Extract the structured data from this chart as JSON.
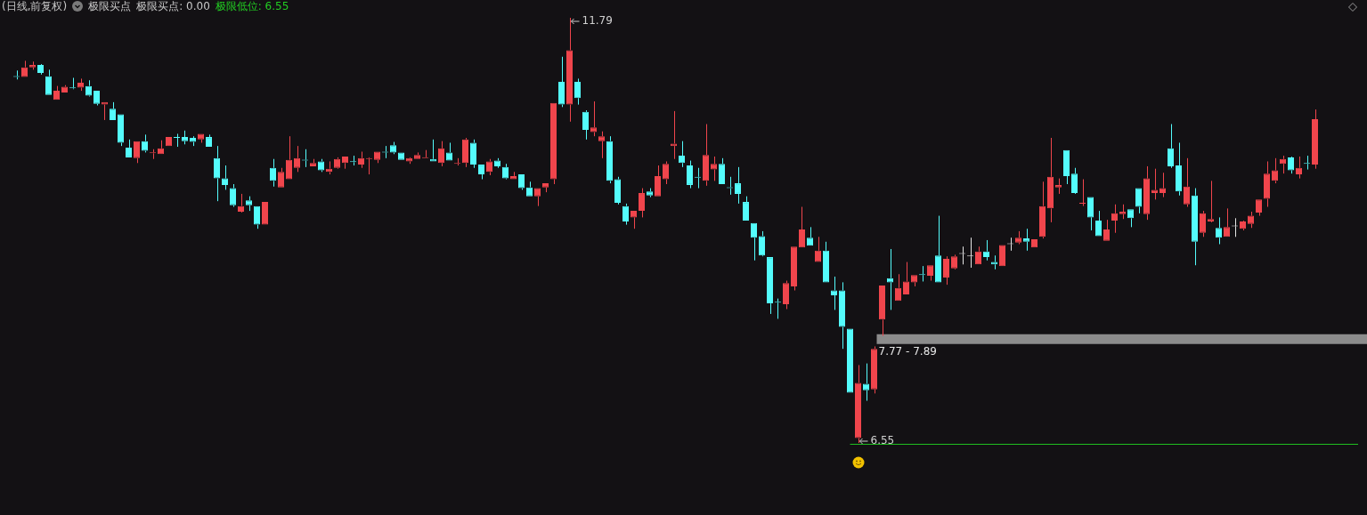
{
  "chart_data": {
    "type": "candlestick",
    "title": "(日线,前复权)",
    "subtitle": "极限买点",
    "annotations": [
      "极限买点: 0.00",
      "极限低位: 6.55",
      {
        "text": "11.79"
      },
      {
        "text": "6.55",
        "y": 6.55
      }
    ],
    "ref_lines": [
      {
        "axis": "y",
        "value": 6.55,
        "color": "#1fbf1f"
      }
    ],
    "bands": [
      {
        "axis": "y",
        "from": 7.77,
        "to": 7.89,
        "label": "7.77 - 7.89",
        "color": "#8c8c8c"
      }
    ],
    "categories": [
      null,
      null,
      null,
      null,
      null,
      null,
      null,
      null,
      null,
      null,
      null,
      null,
      null,
      null,
      null,
      null,
      null,
      null,
      null,
      null,
      null,
      null,
      null,
      null,
      null,
      null,
      null,
      null,
      null,
      null,
      null,
      null,
      null,
      null,
      null,
      null,
      null,
      null,
      null,
      null,
      null,
      null,
      null,
      null,
      null,
      null,
      null,
      null,
      null,
      null,
      null,
      null,
      null,
      null,
      null,
      null,
      null,
      null,
      null,
      null,
      null,
      null,
      null,
      null,
      null,
      null,
      null,
      null,
      null,
      null,
      null,
      null,
      null,
      null,
      null,
      null,
      null,
      null,
      null,
      null,
      null,
      null,
      null,
      null,
      null,
      null,
      null,
      null,
      null,
      null,
      null,
      null,
      null,
      null,
      null,
      null,
      null,
      null,
      null,
      null,
      null,
      null,
      null,
      null,
      null,
      null,
      null,
      null,
      null,
      null,
      null,
      null,
      null,
      null,
      null,
      null,
      null,
      null,
      null,
      null,
      null,
      null,
      null,
      null,
      null,
      null,
      null,
      null,
      null,
      null,
      null,
      null,
      null,
      null,
      null,
      null,
      null,
      null,
      null,
      null,
      null,
      null,
      null,
      null,
      null,
      null,
      null,
      null,
      null,
      null,
      null,
      null,
      null,
      null,
      null,
      null,
      null,
      null,
      null,
      null,
      null,
      null,
      null
    ],
    "ohlc": [
      [
        11.07,
        11.14,
        11.03,
        11.06
      ],
      [
        11.06,
        11.26,
        11.06,
        11.18
      ],
      [
        11.18,
        11.25,
        11.15,
        11.21
      ],
      [
        11.21,
        11.22,
        11.09,
        11.11
      ],
      [
        11.07,
        11.15,
        10.84,
        10.84
      ],
      [
        10.78,
        10.95,
        10.78,
        10.89
      ],
      [
        10.87,
        10.96,
        10.87,
        10.94
      ],
      [
        10.93,
        11.05,
        10.91,
        10.92
      ],
      [
        10.93,
        11.04,
        10.89,
        10.99
      ],
      [
        10.95,
        11.02,
        10.82,
        10.83
      ],
      [
        10.89,
        10.89,
        10.71,
        10.73
      ],
      [
        10.72,
        10.75,
        10.53,
        10.75
      ],
      [
        10.67,
        10.75,
        10.53,
        10.53
      ],
      [
        10.6,
        10.6,
        10.21,
        10.25
      ],
      [
        10.19,
        10.29,
        10.07,
        10.07
      ],
      [
        10.06,
        10.27,
        10.0,
        10.27
      ],
      [
        10.27,
        10.35,
        10.13,
        10.15
      ],
      [
        10.12,
        10.17,
        10.05,
        10.13
      ],
      [
        10.11,
        10.28,
        10.11,
        10.18
      ],
      [
        10.21,
        10.32,
        10.21,
        10.32
      ],
      [
        10.32,
        10.36,
        10.2,
        10.31
      ],
      [
        10.32,
        10.4,
        10.23,
        10.27
      ],
      [
        10.31,
        10.33,
        10.21,
        10.26
      ],
      [
        10.29,
        10.36,
        10.25,
        10.36
      ],
      [
        10.32,
        10.35,
        10.2,
        10.2
      ],
      [
        10.06,
        10.21,
        9.53,
        9.81
      ],
      [
        9.81,
        9.97,
        9.67,
        9.73
      ],
      [
        9.69,
        9.74,
        9.46,
        9.48
      ],
      [
        9.4,
        9.62,
        9.39,
        9.47
      ],
      [
        9.54,
        9.59,
        9.41,
        9.48
      ],
      [
        9.47,
        9.47,
        9.19,
        9.24
      ],
      [
        9.24,
        9.52,
        9.24,
        9.52
      ],
      [
        9.94,
        10.05,
        9.71,
        9.78
      ],
      [
        9.7,
        9.94,
        9.7,
        9.89
      ],
      [
        9.8,
        10.33,
        9.8,
        10.04
      ],
      [
        9.94,
        10.21,
        9.89,
        10.06
      ],
      [
        10.04,
        10.17,
        9.95,
        10.03
      ],
      [
        9.96,
        10.05,
        9.96,
        10.0
      ],
      [
        10.02,
        10.05,
        9.89,
        9.91
      ],
      [
        9.89,
        10.02,
        9.86,
        9.93
      ],
      [
        9.94,
        10.07,
        9.93,
        10.05
      ],
      [
        10.0,
        10.08,
        9.93,
        10.08
      ],
      [
        10.02,
        10.09,
        9.97,
        10.01
      ],
      [
        9.98,
        10.14,
        9.94,
        10.06
      ],
      [
        10.05,
        10.07,
        9.86,
        10.06
      ],
      [
        10.04,
        10.14,
        10.0,
        10.14
      ],
      [
        10.14,
        10.21,
        10.06,
        10.13
      ],
      [
        10.22,
        10.26,
        10.11,
        10.13
      ],
      [
        10.13,
        10.13,
        10.04,
        10.04
      ],
      [
        10.02,
        10.07,
        9.99,
        10.06
      ],
      [
        10.05,
        10.13,
        10.05,
        10.1
      ],
      [
        10.06,
        10.16,
        10.06,
        10.07
      ],
      [
        10.05,
        10.29,
        10.02,
        10.02
      ],
      [
        10.0,
        10.27,
        9.96,
        10.18
      ],
      [
        10.13,
        10.25,
        10.03,
        10.03
      ],
      [
        9.99,
        10.06,
        9.97,
        10.0
      ],
      [
        10.0,
        10.31,
        9.95,
        10.29
      ],
      [
        10.25,
        10.29,
        9.94,
        9.98
      ],
      [
        9.98,
        9.98,
        9.8,
        9.86
      ],
      [
        9.89,
        10.05,
        9.85,
        10.02
      ],
      [
        10.03,
        10.06,
        9.94,
        9.96
      ],
      [
        9.95,
        9.99,
        9.8,
        9.81
      ],
      [
        9.8,
        9.89,
        9.8,
        9.84
      ],
      [
        9.86,
        9.86,
        9.67,
        9.69
      ],
      [
        9.7,
        9.77,
        9.59,
        9.59
      ],
      [
        9.59,
        9.69,
        9.47,
        9.69
      ],
      [
        9.7,
        9.75,
        9.64,
        9.75
      ],
      [
        9.8,
        10.74,
        9.74,
        10.74
      ],
      [
        11.0,
        11.31,
        10.69,
        10.72
      ],
      [
        10.72,
        11.79,
        10.51,
        11.39
      ],
      [
        11.0,
        11.04,
        10.72,
        10.8
      ],
      [
        10.63,
        10.65,
        10.29,
        10.41
      ],
      [
        10.38,
        10.76,
        10.33,
        10.44
      ],
      [
        10.27,
        10.39,
        10.06,
        10.33
      ],
      [
        10.27,
        10.33,
        9.75,
        9.78
      ],
      [
        9.8,
        9.83,
        9.49,
        9.51
      ],
      [
        9.47,
        9.5,
        9.24,
        9.28
      ],
      [
        9.33,
        9.41,
        9.19,
        9.41
      ],
      [
        9.41,
        9.69,
        9.33,
        9.63
      ],
      [
        9.65,
        9.69,
        9.58,
        9.6
      ],
      [
        9.59,
        9.97,
        9.59,
        9.84
      ],
      [
        9.8,
        10.02,
        9.74,
        9.99
      ],
      [
        10.21,
        10.64,
        10.05,
        10.24
      ],
      [
        10.09,
        10.27,
        9.95,
        10.0
      ],
      [
        9.97,
        10.03,
        9.69,
        9.73
      ],
      [
        9.83,
        9.94,
        9.69,
        9.82
      ],
      [
        9.78,
        10.48,
        9.72,
        10.1
      ],
      [
        9.92,
        10.08,
        9.78,
        9.99
      ],
      [
        9.99,
        10.06,
        9.74,
        9.74
      ],
      [
        9.7,
        9.83,
        9.61,
        9.69
      ],
      [
        9.75,
        9.95,
        9.5,
        9.62
      ],
      [
        9.52,
        9.59,
        9.29,
        9.29
      ],
      [
        9.26,
        9.26,
        8.8,
        9.08
      ],
      [
        9.1,
        9.16,
        8.85,
        8.86
      ],
      [
        8.84,
        8.84,
        8.14,
        8.27
      ],
      [
        8.29,
        8.33,
        8.08,
        8.28
      ],
      [
        8.26,
        8.55,
        8.2,
        8.52
      ],
      [
        8.48,
        8.97,
        8.43,
        8.97
      ],
      [
        8.96,
        9.46,
        8.96,
        9.18
      ],
      [
        9.08,
        9.21,
        8.98,
        8.98
      ],
      [
        8.78,
        9.09,
        8.78,
        8.92
      ],
      [
        8.92,
        9.03,
        8.53,
        8.53
      ],
      [
        8.43,
        8.6,
        8.19,
        8.37
      ],
      [
        8.43,
        8.53,
        7.71,
        7.98
      ],
      [
        7.96,
        7.96,
        7.17,
        7.17
      ],
      [
        6.61,
        7.51,
        6.55,
        7.29
      ],
      [
        7.28,
        7.53,
        7.07,
        7.2
      ],
      [
        7.21,
        7.74,
        7.16,
        7.71
      ],
      [
        8.07,
        8.49,
        7.87,
        8.49
      ],
      [
        8.58,
        8.94,
        8.19,
        8.53
      ],
      [
        8.3,
        8.63,
        8.3,
        8.46
      ],
      [
        8.38,
        8.78,
        8.38,
        8.54
      ],
      [
        8.53,
        8.62,
        8.48,
        8.62
      ],
      [
        8.63,
        8.73,
        8.54,
        8.62
      ],
      [
        8.61,
        8.74,
        8.55,
        8.74
      ],
      [
        8.86,
        9.35,
        8.53,
        8.53
      ],
      [
        8.59,
        8.85,
        8.5,
        8.82
      ],
      [
        8.7,
        8.87,
        8.69,
        8.85
      ],
      [
        8.88,
        8.97,
        8.75,
        8.88
      ],
      [
        8.85,
        9.08,
        8.71,
        8.85
      ],
      [
        8.75,
        8.97,
        8.75,
        8.91
      ],
      [
        8.91,
        9.05,
        8.8,
        8.84
      ],
      [
        8.78,
        8.86,
        8.69,
        8.75
      ],
      [
        8.73,
        8.99,
        8.73,
        8.99
      ],
      [
        9.0,
        9.08,
        8.92,
        9.0
      ],
      [
        9.02,
        9.16,
        9.0,
        9.08
      ],
      [
        9.07,
        9.19,
        8.92,
        9.03
      ],
      [
        8.96,
        9.06,
        8.96,
        9.06
      ],
      [
        9.09,
        9.77,
        9.07,
        9.47
      ],
      [
        9.44,
        10.31,
        9.27,
        9.83
      ],
      [
        9.7,
        9.81,
        9.62,
        9.73
      ],
      [
        10.16,
        10.16,
        9.74,
        9.84
      ],
      [
        9.87,
        9.94,
        9.62,
        9.63
      ],
      [
        9.5,
        9.8,
        9.47,
        9.51
      ],
      [
        9.58,
        9.58,
        9.17,
        9.33
      ],
      [
        9.29,
        9.41,
        9.1,
        9.1
      ],
      [
        9.04,
        9.3,
        9.04,
        9.18
      ],
      [
        9.29,
        9.49,
        9.14,
        9.38
      ],
      [
        9.37,
        9.49,
        9.31,
        9.4
      ],
      [
        9.43,
        9.43,
        9.21,
        9.32
      ],
      [
        9.69,
        9.69,
        9.38,
        9.46
      ],
      [
        9.37,
        9.96,
        9.3,
        9.81
      ],
      [
        9.63,
        9.93,
        9.55,
        9.67
      ],
      [
        9.63,
        9.88,
        9.58,
        9.69
      ],
      [
        10.18,
        10.48,
        9.94,
        9.96
      ],
      [
        9.97,
        10.25,
        9.6,
        9.65
      ],
      [
        9.49,
        10.06,
        9.46,
        9.71
      ],
      [
        9.6,
        9.69,
        8.74,
        9.03
      ],
      [
        9.14,
        9.41,
        9.09,
        9.38
      ],
      [
        9.28,
        9.78,
        9.27,
        9.31
      ],
      [
        9.2,
        9.33,
        9.0,
        9.08
      ],
      [
        9.09,
        9.44,
        9.09,
        9.21
      ],
      [
        9.22,
        9.32,
        9.09,
        9.22
      ],
      [
        9.19,
        9.29,
        9.17,
        9.28
      ],
      [
        9.25,
        9.4,
        9.2,
        9.35
      ],
      [
        9.39,
        9.55,
        9.35,
        9.55
      ],
      [
        9.56,
        10.02,
        9.46,
        9.87
      ],
      [
        9.78,
        10.06,
        9.75,
        9.91
      ],
      [
        9.99,
        10.09,
        9.87,
        10.05
      ],
      [
        10.07,
        10.08,
        9.87,
        9.91
      ],
      [
        9.86,
        10.08,
        9.81,
        9.94
      ],
      [
        10.0,
        10.09,
        9.92,
        9.99
      ],
      [
        9.98,
        10.66,
        9.93,
        10.54
      ]
    ],
    "colors": [
      "#54fcfc",
      "#f0454c",
      "#f0454c",
      "#54fcfc",
      "#54fcfc",
      "#f0454c",
      "#f0454c",
      "#54fcfc",
      "#f0454c",
      "#54fcfc",
      "#54fcfc",
      "#f0454c",
      "#54fcfc",
      "#54fcfc",
      "#54fcfc",
      "#f0454c",
      "#54fcfc",
      "#f0454c",
      "#f0454c",
      "#f0454c",
      "#54fcfc",
      "#54fcfc",
      "#54fcfc",
      "#f0454c",
      "#54fcfc",
      "#54fcfc",
      "#54fcfc",
      "#54fcfc",
      "#f0454c",
      "#54fcfc",
      "#54fcfc",
      "#f0454c",
      "#54fcfc",
      "#f0454c",
      "#f0454c",
      "#f0454c",
      "#54fcfc",
      "#f0454c",
      "#54fcfc",
      "#f0454c",
      "#f0454c",
      "#f0454c",
      "#54fcfc",
      "#f0454c",
      "#f0454c",
      "#f0454c",
      "#54fcfc",
      "#54fcfc",
      "#54fcfc",
      "#f0454c",
      "#f0454c",
      "#f0454c",
      "#54fcfc",
      "#f0454c",
      "#54fcfc",
      "#f0454c",
      "#f0454c",
      "#54fcfc",
      "#54fcfc",
      "#f0454c",
      "#54fcfc",
      "#54fcfc",
      "#f0454c",
      "#54fcfc",
      "#54fcfc",
      "#f0454c",
      "#f0454c",
      "#f0454c",
      "#54fcfc",
      "#f0454c",
      "#54fcfc",
      "#54fcfc",
      "#f0454c",
      "#f0454c",
      "#54fcfc",
      "#54fcfc",
      "#54fcfc",
      "#f0454c",
      "#f0454c",
      "#54fcfc",
      "#f0454c",
      "#f0454c",
      "#f0454c",
      "#54fcfc",
      "#54fcfc",
      "#54fcfc",
      "#f0454c",
      "#f0454c",
      "#54fcfc",
      "#54fcfc",
      "#54fcfc",
      "#54fcfc",
      "#54fcfc",
      "#54fcfc",
      "#54fcfc",
      "#54fcfc",
      "#f0454c",
      "#f0454c",
      "#f0454c",
      "#54fcfc",
      "#f0454c",
      "#54fcfc",
      "#54fcfc",
      "#54fcfc",
      "#54fcfc",
      "#f0454c",
      "#54fcfc",
      "#f0454c",
      "#f0454c",
      "#54fcfc",
      "#f0454c",
      "#f0454c",
      "#f0454c",
      "#54fcfc",
      "#f0454c",
      "#54fcfc",
      "#f0454c",
      "#f0454c",
      "#e6e6e6",
      "#e6e6e6",
      "#f0454c",
      "#54fcfc",
      "#54fcfc",
      "#f0454c",
      "#e6e6e6",
      "#f0454c",
      "#54fcfc",
      "#f0454c",
      "#f0454c",
      "#f0454c",
      "#f0454c",
      "#54fcfc",
      "#54fcfc",
      "#f0454c",
      "#54fcfc",
      "#54fcfc",
      "#f0454c",
      "#f0454c",
      "#f0454c",
      "#54fcfc",
      "#54fcfc",
      "#f0454c",
      "#f0454c",
      "#f0454c",
      "#54fcfc",
      "#54fcfc",
      "#f0454c",
      "#54fcfc",
      "#f0454c",
      "#f0454c",
      "#54fcfc",
      "#f0454c",
      "#e6e6e6",
      "#f0454c",
      "#f0454c",
      "#f0454c",
      "#f0454c",
      "#f0454c",
      "#f0454c",
      "#54fcfc",
      "#f0454c",
      "#54fcfc",
      "#f0454c"
    ]
  }
}
